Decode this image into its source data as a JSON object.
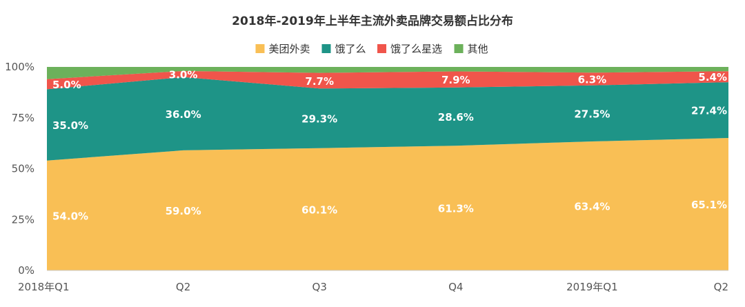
{
  "chart_data": {
    "type": "area",
    "stacked": true,
    "percent": true,
    "title": "2018年-2019年上半年主流外卖品牌交易额占比分布",
    "categories": [
      "2018年Q1",
      "Q2",
      "Q3",
      "Q4",
      "2019年Q1",
      "Q2"
    ],
    "ylim": [
      0,
      100
    ],
    "yticks": [
      "0%",
      "25%",
      "50%",
      "75%",
      "100%"
    ],
    "ytick_values": [
      0,
      25,
      50,
      75,
      100
    ],
    "legend_position": "top-center",
    "grid": false,
    "series": [
      {
        "name": "美团外卖",
        "color": "#F9BF55",
        "values": [
          54.0,
          59.0,
          60.1,
          61.3,
          63.4,
          65.1
        ],
        "labels": [
          "54.0%",
          "59.0%",
          "60.1%",
          "61.3%",
          "63.4%",
          "65.1%"
        ]
      },
      {
        "name": "饿了么",
        "color": "#1E9487",
        "values": [
          35.0,
          36.0,
          29.3,
          28.6,
          27.5,
          27.4
        ],
        "labels": [
          "35.0%",
          "36.0%",
          "29.3%",
          "28.6%",
          "27.5%",
          "27.4%"
        ]
      },
      {
        "name": "饿了么星选",
        "color": "#F0554B",
        "values": [
          5.0,
          3.0,
          7.7,
          7.9,
          6.3,
          5.4
        ],
        "labels": [
          "5.0%",
          "3.0%",
          "7.7%",
          "7.9%",
          "6.3%",
          "5.4%"
        ]
      },
      {
        "name": "其他",
        "color": "#6CB15B",
        "values": [
          6.0,
          2.0,
          2.9,
          2.2,
          2.8,
          2.1
        ],
        "labels": []
      }
    ]
  }
}
